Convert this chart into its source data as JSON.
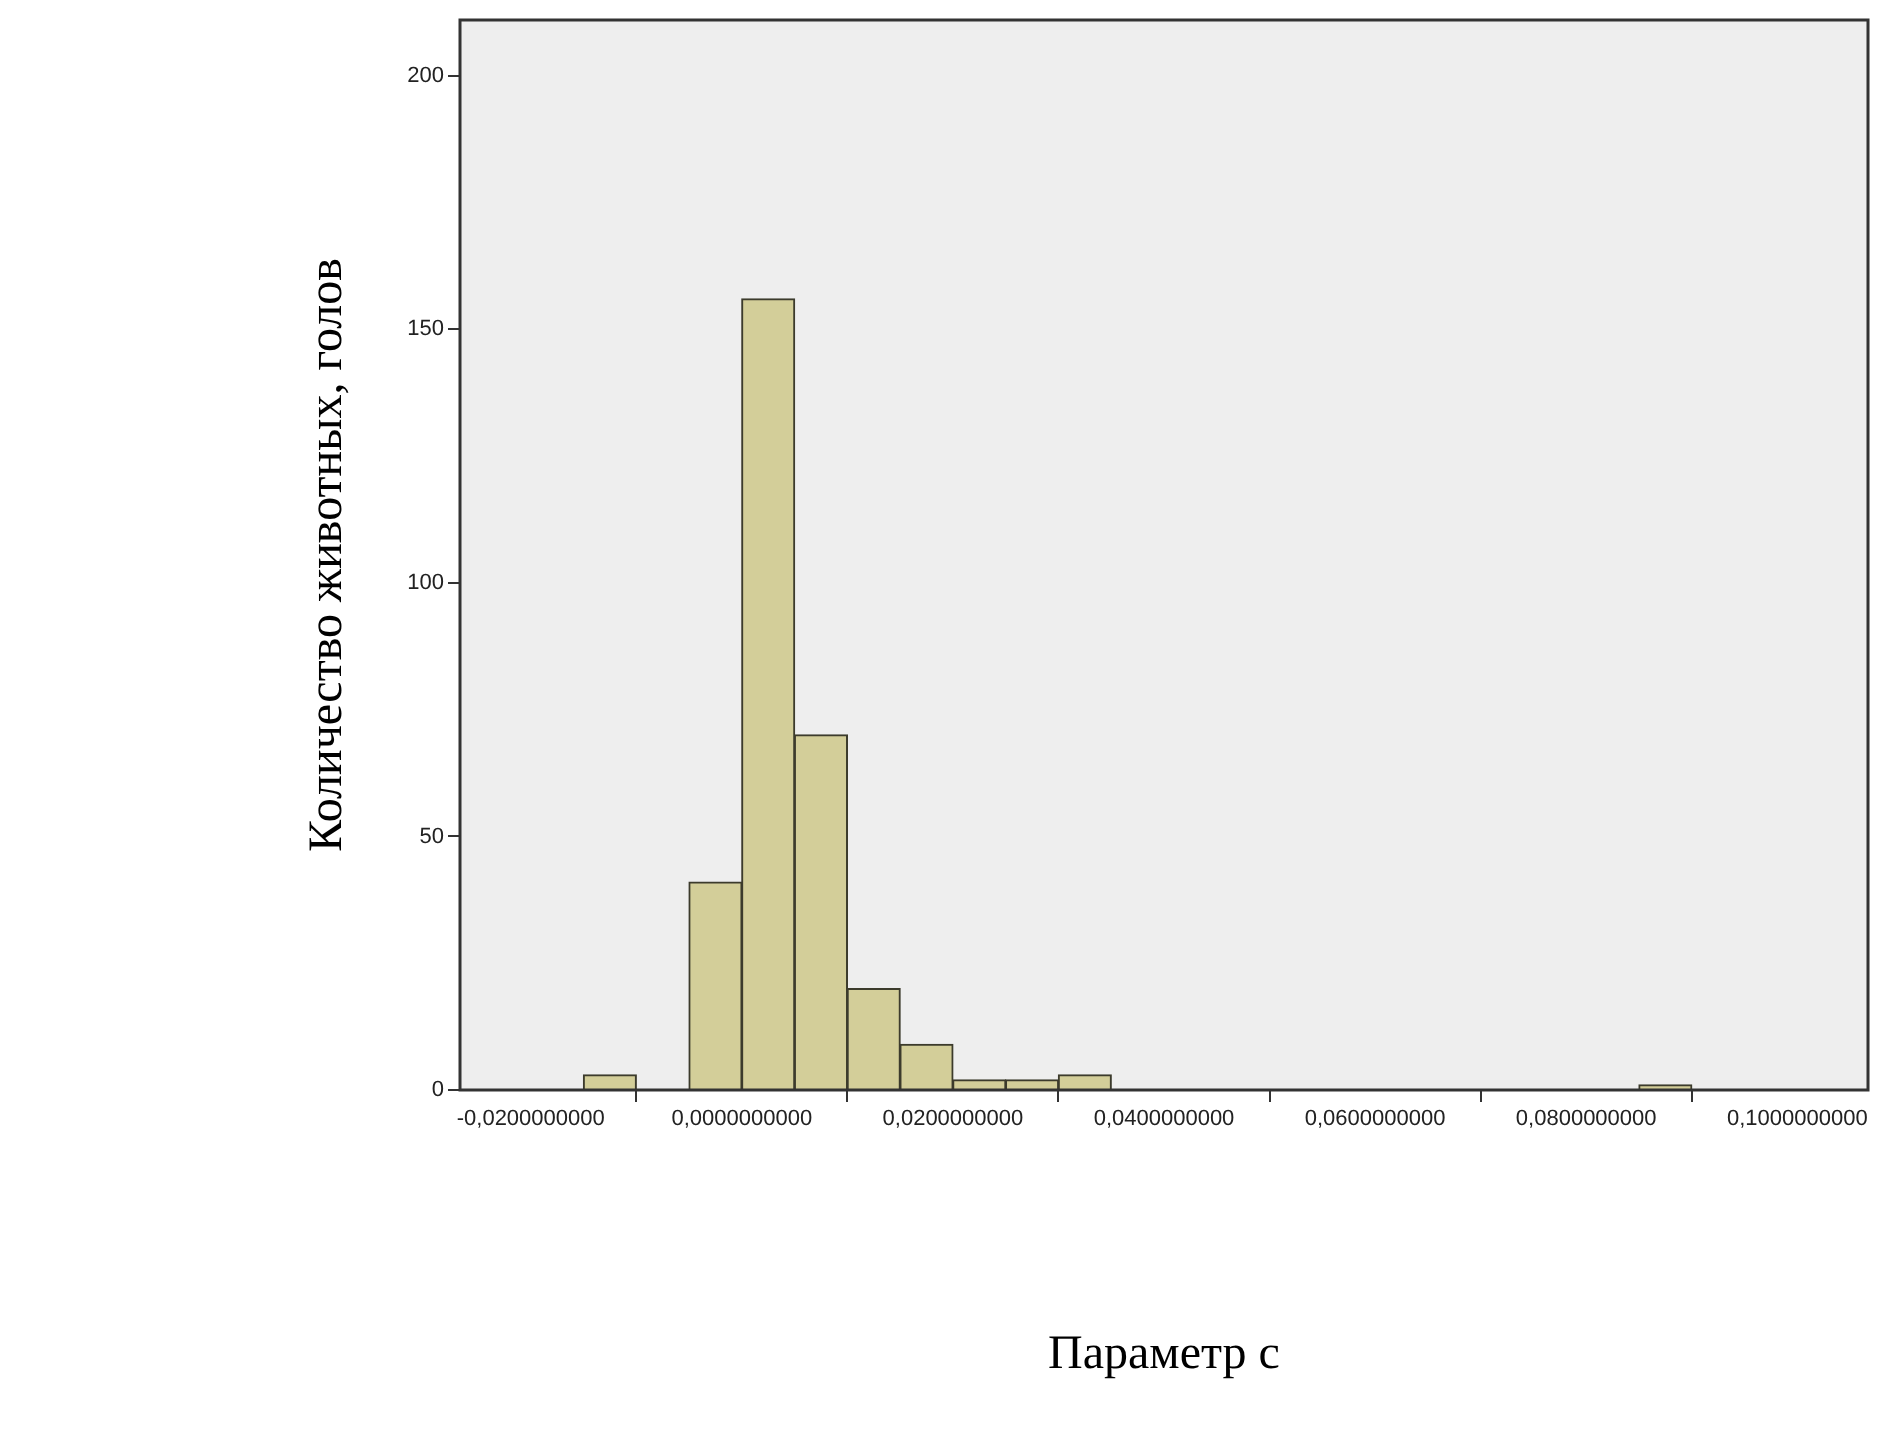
{
  "chart_data": {
    "type": "histogram",
    "xlabel": "Параметр с",
    "ylabel": "Количество животных, голов",
    "bins": [
      -0.015,
      -0.01,
      -0.005,
      0,
      0.005,
      0.01,
      0.015,
      0.02,
      0.025,
      0.03,
      0.035,
      0.04,
      0.045,
      0.05,
      0.055,
      0.06,
      0.065,
      0.07,
      0.075,
      0.08,
      0.085,
      0.09
    ],
    "values": [
      3,
      0,
      41,
      156,
      70,
      20,
      9,
      2,
      2,
      3,
      0,
      0,
      0,
      0,
      0,
      0,
      0,
      0,
      0,
      0,
      1
    ],
    "color": "#d3ce99",
    "xlim": [
      -0.0267,
      0.1067
    ],
    "xticks": [
      {
        "value": -0.02,
        "label": "-0,0200000000"
      },
      {
        "value": 0,
        "label": "0,0000000000"
      },
      {
        "value": 0.02,
        "label": "0,0200000000"
      },
      {
        "value": 0.04,
        "label": "0,0400000000"
      },
      {
        "value": 0.06,
        "label": "0,0600000000"
      },
      {
        "value": 0.08,
        "label": "0,0800000000"
      },
      {
        "value": 0.1,
        "label": "0,1000000000"
      }
    ],
    "ylim": [
      0,
      211
    ],
    "yticks": [
      0,
      50,
      100,
      150,
      200
    ],
    "grid": false
  }
}
